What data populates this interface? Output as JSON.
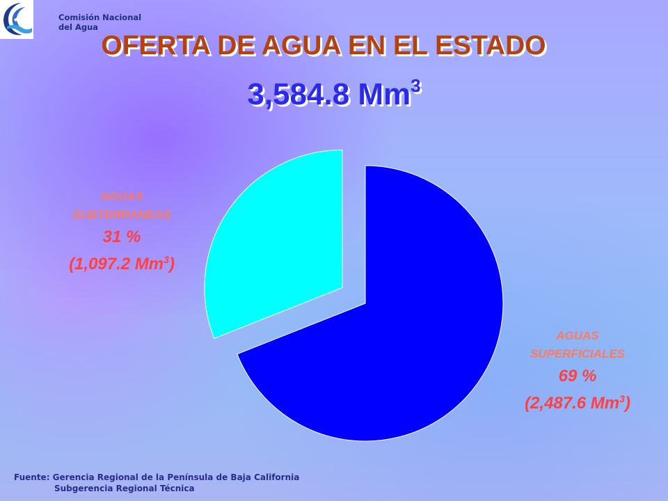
{
  "header": {
    "org_line1": "Comisión Nacional",
    "org_line2": "del Agua",
    "logo_icon": "conagua-logo-icon"
  },
  "title": "OFERTA DE AGUA EN EL ESTADO",
  "total": {
    "value": "3,584.8 Mm",
    "unit_exponent": "3"
  },
  "chart_data": {
    "type": "pie",
    "title": "",
    "categories": [
      "AGUAS SUBTERRANEAS",
      "AGUAS SUPERFICIALES"
    ],
    "values": [
      31,
      69
    ],
    "volumes_Mm3": [
      1097.2,
      2487.6
    ],
    "colors": [
      "#00ffff",
      "#0000ff"
    ],
    "exploded": "AGUAS SUBTERRANEAS",
    "labels": [
      {
        "line1": "AGUAS",
        "line2": "SUBTERRANEAS",
        "percent": "31 %",
        "volume": "(1,097.2 Mm",
        "exp": "3",
        "close": ")"
      },
      {
        "line1": "AGUAS",
        "line2": "SUPERFICIALES",
        "percent": "69 %",
        "volume": "(2,487.6 Mm",
        "exp": "3",
        "close": ")"
      }
    ]
  },
  "footer": {
    "source_line1": "Fuente: Gerencia Regional de la Península de Baja California",
    "source_line2": "Subgerencia Regional Técnica"
  }
}
